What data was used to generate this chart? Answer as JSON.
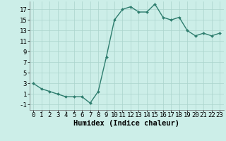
{
  "xlabel": "Humidex (Indice chaleur)",
  "x_values": [
    0,
    1,
    2,
    3,
    4,
    5,
    6,
    7,
    8,
    9,
    10,
    11,
    12,
    13,
    14,
    15,
    16,
    17,
    18,
    19,
    20,
    21,
    22,
    23
  ],
  "y_values": [
    3,
    2,
    1.5,
    1,
    0.5,
    0.5,
    0.5,
    -0.7,
    1.5,
    8,
    15,
    17,
    17.5,
    16.5,
    16.5,
    18,
    15.5,
    15,
    15.5,
    13,
    12,
    12.5,
    12,
    12.5
  ],
  "line_color": "#2e7d6e",
  "marker": "D",
  "marker_size": 2.0,
  "bg_color": "#cceee8",
  "grid_color": "#aad4cc",
  "ylim": [
    -2,
    18.5
  ],
  "xlim": [
    -0.5,
    23.5
  ],
  "yticks": [
    -1,
    1,
    3,
    5,
    7,
    9,
    11,
    13,
    15,
    17
  ],
  "xticks": [
    0,
    1,
    2,
    3,
    4,
    5,
    6,
    7,
    8,
    9,
    10,
    11,
    12,
    13,
    14,
    15,
    16,
    17,
    18,
    19,
    20,
    21,
    22,
    23
  ],
  "xlabel_fontsize": 7.5,
  "tick_fontsize": 6.5,
  "line_width": 1.0,
  "spine_color": "#666666"
}
